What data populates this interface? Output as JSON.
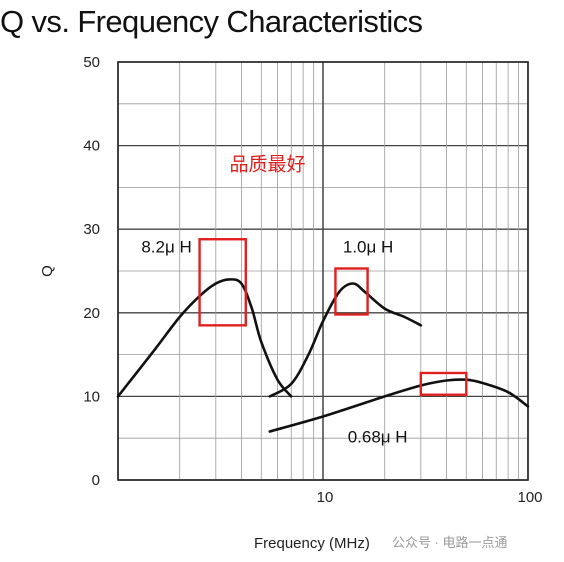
{
  "chart_data": {
    "type": "line",
    "title": "Q vs. Frequency Characteristics",
    "xlabel": "Frequency (MHz)",
    "ylabel": "Q",
    "x_scale": "log",
    "xlim": [
      1,
      100
    ],
    "ylim": [
      0,
      50
    ],
    "x_tick_labels": [
      "10",
      "100"
    ],
    "y_tick_labels": [
      "0",
      "10",
      "20",
      "30",
      "40",
      "50"
    ],
    "grid": true,
    "series": [
      {
        "name": "8.2μ H",
        "x": [
          1.0,
          1.5,
          2.0,
          2.5,
          3.0,
          3.5,
          4.0,
          4.5,
          5.0,
          6.0,
          7.0
        ],
        "y": [
          10,
          15.5,
          19.5,
          22,
          23.5,
          24,
          23.5,
          20.5,
          16.5,
          12,
          10
        ]
      },
      {
        "name": "1.0μ H",
        "x": [
          5.5,
          7.0,
          8.5,
          10.0,
          12.0,
          14.0,
          16.0,
          20.0,
          25.0,
          30.0
        ],
        "y": [
          10,
          11.5,
          15,
          19,
          22.5,
          23.5,
          22.5,
          20.5,
          19.5,
          18.5
        ]
      },
      {
        "name": "0.68μ H",
        "x": [
          5.5,
          10.0,
          20.0,
          30.0,
          40.0,
          50.0,
          60.0,
          80.0,
          100.0
        ],
        "y": [
          5.8,
          7.6,
          10.0,
          11.3,
          11.9,
          12.0,
          11.6,
          10.5,
          8.8
        ]
      }
    ],
    "annotations": [
      {
        "text": "品质最好",
        "color": "#e02020"
      }
    ],
    "highlight_boxes": [
      {
        "color": "#e02020",
        "x_range": [
          2.5,
          4.2
        ],
        "y_range": [
          18.5,
          28.8
        ]
      },
      {
        "color": "#e02020",
        "x_range": [
          11.5,
          16.5
        ],
        "y_range": [
          19.8,
          25.3
        ]
      },
      {
        "color": "#e02020",
        "x_range": [
          30.0,
          50.0
        ],
        "y_range": [
          10.2,
          12.8
        ]
      }
    ],
    "watermark": "公众号 · 电路一点通"
  }
}
